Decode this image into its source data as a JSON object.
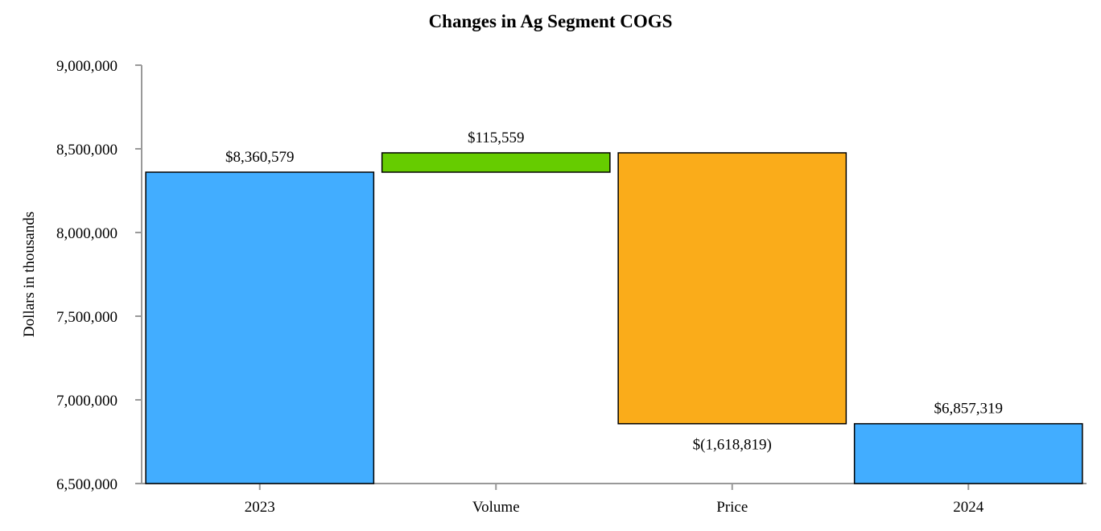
{
  "chart_data": {
    "type": "waterfall",
    "title": "Changes in Ag Segment COGS",
    "ylabel": "Dollars in thousands",
    "xlabel": "",
    "ylim": [
      6500000,
      9000000
    ],
    "yticks": [
      6500000,
      7000000,
      7500000,
      8000000,
      8500000,
      9000000
    ],
    "ytick_labels": [
      "6,500,000",
      "7,000,000",
      "7,500,000",
      "8,000,000",
      "8,500,000",
      "9,000,000"
    ],
    "grid": false,
    "legend": "none",
    "categories": [
      "2023",
      "Volume",
      "Price",
      "2024"
    ],
    "bars": [
      {
        "category": "2023",
        "kind": "total",
        "value": 8360579,
        "label": "$8,360,579",
        "color": "#42ADFF"
      },
      {
        "category": "Volume",
        "kind": "increase",
        "value": 115559,
        "label": "$115,559",
        "color": "#66CC00"
      },
      {
        "category": "Price",
        "kind": "decrease",
        "value": -1618819,
        "label": "$(1,618,819)",
        "color": "#FAAC1A"
      },
      {
        "category": "2024",
        "kind": "total",
        "value": 6857319,
        "label": "$6,857,319",
        "color": "#42ADFF"
      }
    ]
  }
}
